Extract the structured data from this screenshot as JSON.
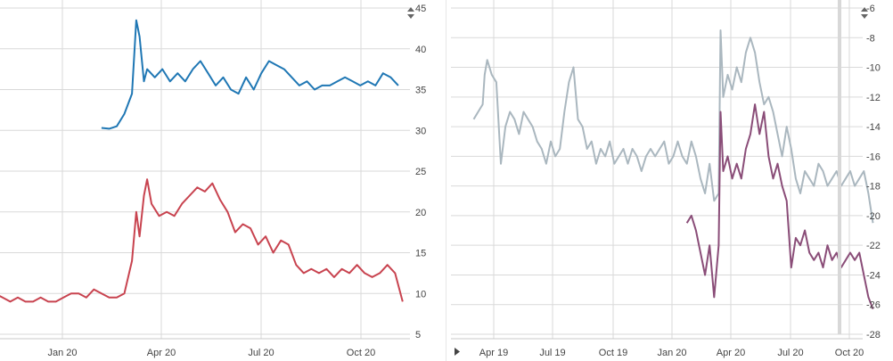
{
  "colors": {
    "blue": "#1f77b4",
    "red": "#c8434f",
    "gray": "#aab7bf",
    "purple": "#8a4d78",
    "grid": "#d9d9d9"
  },
  "icons": {
    "left_sort": "sort-arrows-icon",
    "right_sort": "sort-arrows-icon",
    "right_expand": "triangle-right-icon"
  },
  "chart_data": [
    {
      "type": "line",
      "grid": true,
      "y_axis_side": "right",
      "ylim": [
        5,
        45
      ],
      "y_ticks": [
        5,
        10,
        15,
        20,
        25,
        30,
        35,
        40,
        45
      ],
      "x_ticks": [
        "Jan 20",
        "Apr 20",
        "Jul 20",
        "Oct 20"
      ],
      "series": [
        {
          "color": "#1f77b4",
          "points": [
            [
              "2020-02-06",
              30.3
            ],
            [
              "2020-02-13",
              30.2
            ],
            [
              "2020-02-20",
              30.5
            ],
            [
              "2020-02-27",
              32.0
            ],
            [
              "2020-03-05",
              34.5
            ],
            [
              "2020-03-09",
              43.5
            ],
            [
              "2020-03-12",
              41.5
            ],
            [
              "2020-03-16",
              36.0
            ],
            [
              "2020-03-19",
              37.5
            ],
            [
              "2020-03-26",
              36.5
            ],
            [
              "2020-04-02",
              37.5
            ],
            [
              "2020-04-09",
              36.0
            ],
            [
              "2020-04-16",
              37.0
            ],
            [
              "2020-04-23",
              36.0
            ],
            [
              "2020-04-30",
              37.5
            ],
            [
              "2020-05-07",
              38.5
            ],
            [
              "2020-05-14",
              37.0
            ],
            [
              "2020-05-21",
              35.5
            ],
            [
              "2020-05-28",
              36.5
            ],
            [
              "2020-06-04",
              35.0
            ],
            [
              "2020-06-11",
              34.5
            ],
            [
              "2020-06-18",
              36.5
            ],
            [
              "2020-06-25",
              35.0
            ],
            [
              "2020-07-02",
              37.0
            ],
            [
              "2020-07-09",
              38.5
            ],
            [
              "2020-07-16",
              38.0
            ],
            [
              "2020-07-23",
              37.5
            ],
            [
              "2020-07-30",
              36.5
            ],
            [
              "2020-08-06",
              35.5
            ],
            [
              "2020-08-13",
              36.0
            ],
            [
              "2020-08-20",
              35.0
            ],
            [
              "2020-08-27",
              35.5
            ],
            [
              "2020-09-03",
              35.5
            ],
            [
              "2020-09-10",
              36.0
            ],
            [
              "2020-09-17",
              36.5
            ],
            [
              "2020-09-24",
              36.0
            ],
            [
              "2020-10-01",
              35.5
            ],
            [
              "2020-10-08",
              36.0
            ],
            [
              "2020-10-15",
              35.5
            ],
            [
              "2020-10-22",
              37.0
            ],
            [
              "2020-10-29",
              36.5
            ],
            [
              "2020-11-05",
              35.5
            ]
          ]
        },
        {
          "color": "#c8434f",
          "points": [
            [
              "2019-10-10",
              9.0
            ],
            [
              "2019-10-17",
              10.5
            ],
            [
              "2019-10-24",
              11.0
            ],
            [
              "2019-10-31",
              10.0
            ],
            [
              "2019-11-07",
              9.5
            ],
            [
              "2019-11-14",
              9.0
            ],
            [
              "2019-11-21",
              9.5
            ],
            [
              "2019-11-28",
              9.0
            ],
            [
              "2019-12-05",
              9.0
            ],
            [
              "2019-12-12",
              9.5
            ],
            [
              "2019-12-19",
              9.0
            ],
            [
              "2019-12-26",
              9.0
            ],
            [
              "2020-01-02",
              9.5
            ],
            [
              "2020-01-09",
              10.0
            ],
            [
              "2020-01-16",
              10.0
            ],
            [
              "2020-01-23",
              9.5
            ],
            [
              "2020-01-30",
              10.5
            ],
            [
              "2020-02-06",
              10.0
            ],
            [
              "2020-02-13",
              9.5
            ],
            [
              "2020-02-20",
              9.5
            ],
            [
              "2020-02-27",
              10.0
            ],
            [
              "2020-03-05",
              14.0
            ],
            [
              "2020-03-09",
              20.0
            ],
            [
              "2020-03-12",
              17.0
            ],
            [
              "2020-03-16",
              22.0
            ],
            [
              "2020-03-19",
              24.0
            ],
            [
              "2020-03-23",
              21.0
            ],
            [
              "2020-03-30",
              19.5
            ],
            [
              "2020-04-06",
              20.0
            ],
            [
              "2020-04-13",
              19.5
            ],
            [
              "2020-04-20",
              21.0
            ],
            [
              "2020-04-27",
              22.0
            ],
            [
              "2020-05-04",
              23.0
            ],
            [
              "2020-05-11",
              22.5
            ],
            [
              "2020-05-18",
              23.5
            ],
            [
              "2020-05-25",
              21.5
            ],
            [
              "2020-06-01",
              20.0
            ],
            [
              "2020-06-08",
              17.5
            ],
            [
              "2020-06-15",
              18.5
            ],
            [
              "2020-06-22",
              18.0
            ],
            [
              "2020-06-29",
              16.0
            ],
            [
              "2020-07-06",
              17.0
            ],
            [
              "2020-07-13",
              15.0
            ],
            [
              "2020-07-20",
              16.5
            ],
            [
              "2020-07-27",
              16.0
            ],
            [
              "2020-08-03",
              13.5
            ],
            [
              "2020-08-10",
              12.5
            ],
            [
              "2020-08-17",
              13.0
            ],
            [
              "2020-08-24",
              12.5
            ],
            [
              "2020-08-31",
              13.0
            ],
            [
              "2020-09-07",
              12.0
            ],
            [
              "2020-09-14",
              13.0
            ],
            [
              "2020-09-21",
              12.5
            ],
            [
              "2020-09-28",
              13.5
            ],
            [
              "2020-10-05",
              12.5
            ],
            [
              "2020-10-12",
              12.0
            ],
            [
              "2020-10-19",
              12.5
            ],
            [
              "2020-10-26",
              13.5
            ],
            [
              "2020-11-02",
              12.5
            ],
            [
              "2020-11-09",
              9.0
            ]
          ]
        }
      ]
    },
    {
      "type": "line",
      "grid": true,
      "y_axis_side": "right",
      "ylim": [
        -28,
        -6
      ],
      "y_ticks": [
        -6,
        -8,
        -10,
        -12,
        -14,
        -16,
        -18,
        -20,
        -22,
        -24,
        -26,
        -28
      ],
      "x_ticks": [
        "Apr 19",
        "Jul 19",
        "Oct 19",
        "Jan 20",
        "Apr 20",
        "Jul 20",
        "Oct 20"
      ],
      "series": [
        {
          "color": "#aab7bf",
          "points": [
            [
              "2019-03-01",
              -13.5
            ],
            [
              "2019-03-08",
              -13.0
            ],
            [
              "2019-03-15",
              -12.5
            ],
            [
              "2019-03-18",
              -10.5
            ],
            [
              "2019-03-22",
              -9.5
            ],
            [
              "2019-03-29",
              -10.5
            ],
            [
              "2019-04-05",
              -11.0
            ],
            [
              "2019-04-12",
              -16.5
            ],
            [
              "2019-04-19",
              -14.0
            ],
            [
              "2019-04-26",
              -13.0
            ],
            [
              "2019-05-03",
              -13.5
            ],
            [
              "2019-05-10",
              -14.5
            ],
            [
              "2019-05-17",
              -13.0
            ],
            [
              "2019-05-24",
              -13.5
            ],
            [
              "2019-05-31",
              -14.0
            ],
            [
              "2019-06-07",
              -15.0
            ],
            [
              "2019-06-14",
              -15.5
            ],
            [
              "2019-06-21",
              -16.5
            ],
            [
              "2019-06-28",
              -15.0
            ],
            [
              "2019-07-05",
              -16.0
            ],
            [
              "2019-07-12",
              -15.5
            ],
            [
              "2019-07-19",
              -13.0
            ],
            [
              "2019-07-26",
              -11.0
            ],
            [
              "2019-08-02",
              -10.0
            ],
            [
              "2019-08-09",
              -13.5
            ],
            [
              "2019-08-16",
              -14.0
            ],
            [
              "2019-08-23",
              -15.5
            ],
            [
              "2019-08-30",
              -15.0
            ],
            [
              "2019-09-06",
              -16.5
            ],
            [
              "2019-09-13",
              -15.5
            ],
            [
              "2019-09-20",
              -16.0
            ],
            [
              "2019-09-27",
              -15.0
            ],
            [
              "2019-10-04",
              -16.5
            ],
            [
              "2019-10-11",
              -16.0
            ],
            [
              "2019-10-18",
              -15.5
            ],
            [
              "2019-10-25",
              -16.5
            ],
            [
              "2019-11-01",
              -15.5
            ],
            [
              "2019-11-08",
              -16.0
            ],
            [
              "2019-11-15",
              -17.0
            ],
            [
              "2019-11-22",
              -16.0
            ],
            [
              "2019-11-29",
              -15.5
            ],
            [
              "2019-12-06",
              -16.0
            ],
            [
              "2019-12-13",
              -15.5
            ],
            [
              "2019-12-20",
              -15.0
            ],
            [
              "2019-12-27",
              -16.5
            ],
            [
              "2020-01-03",
              -16.0
            ],
            [
              "2020-01-10",
              -15.0
            ],
            [
              "2020-01-17",
              -16.0
            ],
            [
              "2020-01-24",
              -16.5
            ],
            [
              "2020-01-31",
              -15.0
            ],
            [
              "2020-02-07",
              -16.0
            ],
            [
              "2020-02-14",
              -17.5
            ],
            [
              "2020-02-21",
              -18.5
            ],
            [
              "2020-02-28",
              -16.5
            ],
            [
              "2020-03-06",
              -19.0
            ],
            [
              "2020-03-13",
              -18.5
            ],
            [
              "2020-03-16",
              -7.5
            ],
            [
              "2020-03-20",
              -12.0
            ],
            [
              "2020-03-27",
              -10.5
            ],
            [
              "2020-04-03",
              -11.5
            ],
            [
              "2020-04-10",
              -10.0
            ],
            [
              "2020-04-17",
              -11.0
            ],
            [
              "2020-04-24",
              -9.0
            ],
            [
              "2020-05-01",
              -8.0
            ],
            [
              "2020-05-08",
              -9.0
            ],
            [
              "2020-05-15",
              -11.0
            ],
            [
              "2020-05-22",
              -12.5
            ],
            [
              "2020-05-29",
              -12.0
            ],
            [
              "2020-06-05",
              -13.0
            ],
            [
              "2020-06-12",
              -14.5
            ],
            [
              "2020-06-19",
              -16.0
            ],
            [
              "2020-06-26",
              -14.0
            ],
            [
              "2020-07-03",
              -15.5
            ],
            [
              "2020-07-10",
              -17.5
            ],
            [
              "2020-07-17",
              -18.5
            ],
            [
              "2020-07-24",
              -17.0
            ],
            [
              "2020-07-31",
              -17.5
            ],
            [
              "2020-08-07",
              -18.0
            ],
            [
              "2020-08-14",
              -16.5
            ],
            [
              "2020-08-21",
              -17.0
            ],
            [
              "2020-08-28",
              -18.0
            ],
            [
              "2020-09-04",
              -17.5
            ],
            [
              "2020-09-11",
              -17.0
            ],
            [
              "2020-09-18",
              -18.0
            ],
            [
              "2020-09-25",
              -17.5
            ],
            [
              "2020-10-02",
              -17.0
            ],
            [
              "2020-10-09",
              -18.0
            ],
            [
              "2020-10-16",
              -17.5
            ],
            [
              "2020-10-23",
              -17.0
            ],
            [
              "2020-10-30",
              -18.5
            ],
            [
              "2020-11-06",
              -20.5
            ]
          ]
        },
        {
          "color": "#8a4d78",
          "points": [
            [
              "2020-01-24",
              -20.5
            ],
            [
              "2020-01-31",
              -20.0
            ],
            [
              "2020-02-07",
              -21.0
            ],
            [
              "2020-02-14",
              -22.5
            ],
            [
              "2020-02-21",
              -24.0
            ],
            [
              "2020-02-28",
              -22.0
            ],
            [
              "2020-03-06",
              -25.5
            ],
            [
              "2020-03-13",
              -22.0
            ],
            [
              "2020-03-16",
              -13.0
            ],
            [
              "2020-03-20",
              -17.0
            ],
            [
              "2020-03-27",
              -16.0
            ],
            [
              "2020-04-03",
              -17.5
            ],
            [
              "2020-04-10",
              -16.5
            ],
            [
              "2020-04-17",
              -17.5
            ],
            [
              "2020-04-24",
              -15.5
            ],
            [
              "2020-05-01",
              -14.5
            ],
            [
              "2020-05-08",
              -12.5
            ],
            [
              "2020-05-15",
              -14.5
            ],
            [
              "2020-05-22",
              -13.0
            ],
            [
              "2020-05-29",
              -16.0
            ],
            [
              "2020-06-05",
              -17.5
            ],
            [
              "2020-06-12",
              -16.5
            ],
            [
              "2020-06-19",
              -18.0
            ],
            [
              "2020-06-26",
              -19.0
            ],
            [
              "2020-07-03",
              -23.5
            ],
            [
              "2020-07-10",
              -21.5
            ],
            [
              "2020-07-17",
              -22.0
            ],
            [
              "2020-07-24",
              -21.0
            ],
            [
              "2020-07-31",
              -22.5
            ],
            [
              "2020-08-07",
              -23.0
            ],
            [
              "2020-08-14",
              -22.5
            ],
            [
              "2020-08-21",
              -23.5
            ],
            [
              "2020-08-28",
              -22.0
            ],
            [
              "2020-09-04",
              -23.0
            ],
            [
              "2020-09-11",
              -22.5
            ],
            [
              "2020-09-18",
              -23.5
            ],
            [
              "2020-09-25",
              -23.0
            ],
            [
              "2020-10-02",
              -22.5
            ],
            [
              "2020-10-09",
              -23.0
            ],
            [
              "2020-10-16",
              -22.5
            ],
            [
              "2020-10-23",
              -24.0
            ],
            [
              "2020-10-30",
              -25.5
            ],
            [
              "2020-11-06",
              -26.3
            ]
          ]
        }
      ]
    }
  ]
}
